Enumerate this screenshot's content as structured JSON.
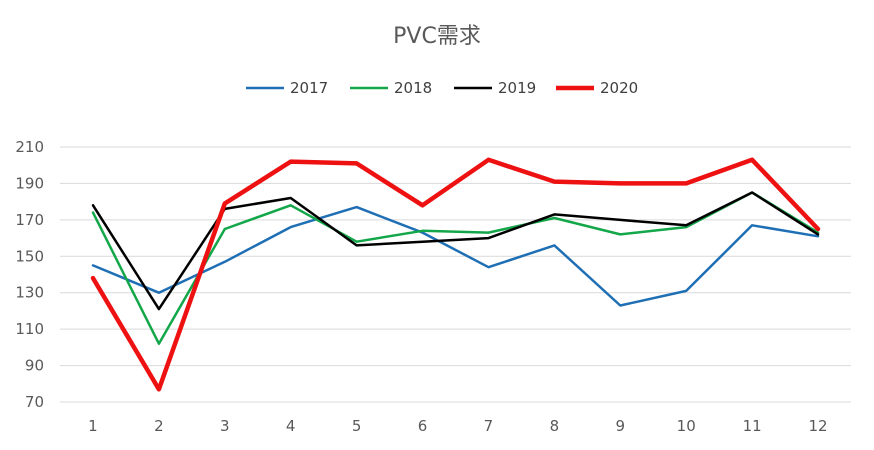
{
  "chart_data": {
    "type": "line",
    "title": "PVC需求",
    "xlabel": "",
    "ylabel": "",
    "categories": [
      "1",
      "2",
      "3",
      "4",
      "5",
      "6",
      "7",
      "8",
      "9",
      "10",
      "11",
      "12"
    ],
    "ylim": [
      70,
      210
    ],
    "yticks": [
      70,
      90,
      110,
      130,
      150,
      170,
      190,
      210
    ],
    "grid": true,
    "legend": "top-center",
    "series": [
      {
        "name": "2017",
        "color": "#1f6fb5",
        "values": [
          145,
          130,
          147,
          166,
          177,
          163,
          144,
          156,
          123,
          131,
          167,
          161
        ]
      },
      {
        "name": "2018",
        "color": "#13a74a",
        "values": [
          174,
          102,
          165,
          178,
          158,
          164,
          163,
          171,
          162,
          166,
          185,
          163
        ]
      },
      {
        "name": "2019",
        "color": "#000000",
        "values": [
          178,
          121,
          176,
          182,
          156,
          158,
          160,
          173,
          170,
          167,
          185,
          162
        ]
      },
      {
        "name": "2020",
        "color": "#ee1111",
        "values": [
          138,
          77,
          179,
          202,
          201,
          178,
          203,
          191,
          190,
          190,
          203,
          165
        ]
      }
    ]
  }
}
